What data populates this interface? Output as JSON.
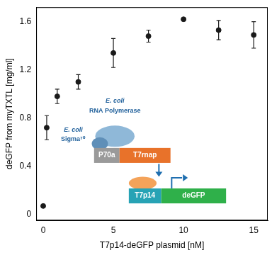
{
  "chart_data": {
    "type": "scatter",
    "x_label": "T7p14-deGFP plasmid [nM]",
    "y_label": "deGFP from myTXTL [mg/ml]",
    "x": [
      0,
      0.25,
      1,
      2.5,
      5,
      7.5,
      10,
      12.5,
      15
    ],
    "values": [
      0.07,
      0.72,
      0.98,
      1.1,
      1.34,
      1.48,
      1.62,
      1.53,
      1.49
    ],
    "errors": [
      0,
      0.1,
      0.06,
      0.06,
      0.12,
      0.05,
      0.01,
      0.08,
      0.11
    ],
    "color": "#1a1a1a",
    "marker": "circle",
    "xlim": [
      -0.5,
      16
    ],
    "xticks": [
      0,
      5,
      10,
      15
    ],
    "ylim": [
      -0.05,
      1.72
    ],
    "yticks": [
      0,
      0.4,
      0.8,
      1.2,
      1.6
    ],
    "grid": false,
    "annotations": {
      "rnap": [
        "E. coli",
        "RNA Polymerase"
      ],
      "sigma": [
        "E. coli",
        "Sigma⁷⁰"
      ],
      "promoter1": "P70a",
      "gene1": "T7rnap",
      "promoter2": "T7p14",
      "gene2": "deGFP"
    }
  }
}
